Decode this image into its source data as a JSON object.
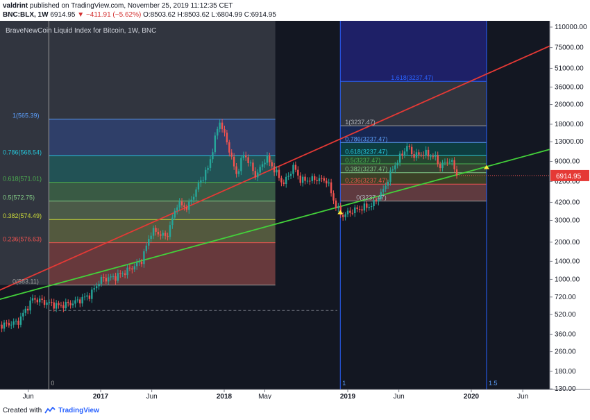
{
  "header": {
    "user": "valdrint",
    "published": "published on TradingView.com, November 25, 2019 11:12:35 CET",
    "symbol": "BNC:BLX, 1W",
    "last": "6914.95",
    "change_arrow": "▼",
    "change": "−411.91 (−5.62%)",
    "ohlc": "O:8503.62 H:8503.62 L:6804.99 C:6914.95"
  },
  "footer": {
    "created_with": "Created with",
    "brand": "TradingView"
  },
  "colors": {
    "background": "#131722",
    "red_trendline": "#e53935",
    "green_trendline": "#43d13a",
    "up_candle": "#26a69a",
    "down_candle": "#ef5350",
    "price_badge": "#e53935",
    "blue_line": "#2962ff"
  },
  "chart_data": {
    "type": "candlestick",
    "title": "BraveNewCoin Liquid Index for Bitcoin, 1W, BNC",
    "y_axis": {
      "scale": "log",
      "ticks": [
        110000,
        75000,
        51000,
        36000,
        26000,
        18000,
        13000,
        9000,
        6200,
        4200,
        3000,
        2000,
        1400,
        1000,
        720,
        520,
        360,
        260,
        180,
        130
      ],
      "tick_labels": [
        "110000.00",
        "75000.00",
        "51000.00",
        "36000.00",
        "26000.00",
        "18000.00",
        "13000.00",
        "9000.00",
        "6200.00",
        "4200.00",
        "3000.00",
        "2000.00",
        "1400.00",
        "1000.00",
        "720.00",
        "520.00",
        "360.00",
        "260.00",
        "180.00",
        "130.00"
      ],
      "last_price_label": "6914.95",
      "last_price": 6914.95
    },
    "x_axis": {
      "ticks": [
        {
          "label": "Jun",
          "date": "2016-06-01"
        },
        {
          "label": "2017",
          "date": "2017-01-01"
        },
        {
          "label": "Jun",
          "date": "2017-06-01"
        },
        {
          "label": "2018",
          "date": "2018-01-01"
        },
        {
          "label": "May",
          "date": "2018-05-01"
        },
        {
          "label": "2019",
          "date": "2019-01-01"
        },
        {
          "label": "Jun",
          "date": "2019-06-01"
        },
        {
          "label": "2020",
          "date": "2020-01-01"
        },
        {
          "label": "Jun",
          "date": "2020-06-01"
        }
      ],
      "bold": [
        "2017",
        "2018",
        "2019",
        "2020"
      ]
    },
    "price_series": [
      [
        "2016-03-01",
        420
      ],
      [
        "2016-05-01",
        450
      ],
      [
        "2016-06-15",
        700
      ],
      [
        "2016-07-15",
        660
      ],
      [
        "2016-09-01",
        610
      ],
      [
        "2016-10-15",
        650
      ],
      [
        "2016-12-01",
        750
      ],
      [
        "2017-01-01",
        1000
      ],
      [
        "2017-02-15",
        1050
      ],
      [
        "2017-03-15",
        1150
      ],
      [
        "2017-05-01",
        1400
      ],
      [
        "2017-06-01",
        2500
      ],
      [
        "2017-07-15",
        2200
      ],
      [
        "2017-08-15",
        4100
      ],
      [
        "2017-09-15",
        3800
      ],
      [
        "2017-10-15",
        5700
      ],
      [
        "2017-11-15",
        8000
      ],
      [
        "2017-12-18",
        19400
      ],
      [
        "2018-01-15",
        11500
      ],
      [
        "2018-02-05",
        7000
      ],
      [
        "2018-03-01",
        10500
      ],
      [
        "2018-04-05",
        6800
      ],
      [
        "2018-05-05",
        9800
      ],
      [
        "2018-06-25",
        5900
      ],
      [
        "2018-07-25",
        8200
      ],
      [
        "2018-08-15",
        6300
      ],
      [
        "2018-10-01",
        6500
      ],
      [
        "2018-11-01",
        6300
      ],
      [
        "2018-11-25",
        4000
      ],
      [
        "2018-12-15",
        3250
      ],
      [
        "2019-01-15",
        3600
      ],
      [
        "2019-02-15",
        3800
      ],
      [
        "2019-03-15",
        4000
      ],
      [
        "2019-04-15",
        5200
      ],
      [
        "2019-05-15",
        8000
      ],
      [
        "2019-06-26",
        12000
      ],
      [
        "2019-07-15",
        10000
      ],
      [
        "2019-08-15",
        10500
      ],
      [
        "2019-09-15",
        9800
      ],
      [
        "2019-10-01",
        8200
      ],
      [
        "2019-10-28",
        9400
      ],
      [
        "2019-11-25",
        6914.95
      ]
    ],
    "trendlines": [
      {
        "name": "resistance",
        "color": "red",
        "from": [
          "2016-03-01",
          800
        ],
        "to": [
          "2020-09-01",
          80000
        ]
      },
      {
        "name": "support",
        "color": "green",
        "from": [
          "2016-03-01",
          680
        ],
        "to": [
          "2020-09-01",
          11500
        ]
      }
    ],
    "fib_retracements": [
      {
        "from": "2016-08-01",
        "to": "2018-06-01",
        "levels": [
          {
            "ratio": "1",
            "label": "1(565.39)",
            "price": 19800
          },
          {
            "ratio": "0.786",
            "label": "0.786(568.54)",
            "price": 10000
          },
          {
            "ratio": "0.618",
            "label": "0.618(571.01)",
            "price": 6100
          },
          {
            "ratio": "0.5",
            "label": "0.5(572.75)",
            "price": 4300
          },
          {
            "ratio": "0.382",
            "label": "0.382(574.49)",
            "price": 3050
          },
          {
            "ratio": "0.236",
            "label": "0.236(576.63)",
            "price": 1980
          },
          {
            "ratio": "0",
            "label": "0(583.11)",
            "price": 900
          }
        ]
      },
      {
        "from": "2018-12-10",
        "to": "2020-02-15",
        "levels": [
          {
            "ratio": "1.618",
            "label": "1.618(3237.47)",
            "price": 40000
          },
          {
            "ratio": "1",
            "label": "1(3237.47)",
            "price": 17500
          },
          {
            "ratio": "0.786",
            "label": "0.786(3237.47)",
            "price": 12800
          },
          {
            "ratio": "0.618",
            "label": "0.618(3237.47)",
            "price": 10100
          },
          {
            "ratio": "0.5",
            "label": "0.5(3237.47)",
            "price": 8600
          },
          {
            "ratio": "0.382",
            "label": "0.382(3237.47)",
            "price": 7300
          },
          {
            "ratio": "0.236",
            "label": "0.236(3237.47)",
            "price": 5900
          },
          {
            "ratio": "0",
            "label": "0(3237.47)",
            "price": 4300
          }
        ]
      }
    ],
    "time_fib_markers": [
      {
        "label": "0",
        "date": "2016-08-01"
      },
      {
        "label": "1",
        "date": "2018-12-10"
      },
      {
        "label": "1.5",
        "date": "2020-02-15"
      }
    ],
    "markers": [
      {
        "shape": "triangle",
        "color": "yellow",
        "date": "2018-12-10",
        "price": 3500
      },
      {
        "shape": "triangle",
        "color": "yellow",
        "date": "2020-02-15",
        "price": 8100
      }
    ],
    "dashed_line": {
      "from": "2016-08-01",
      "to": "2018-12-01",
      "price": 560
    }
  }
}
